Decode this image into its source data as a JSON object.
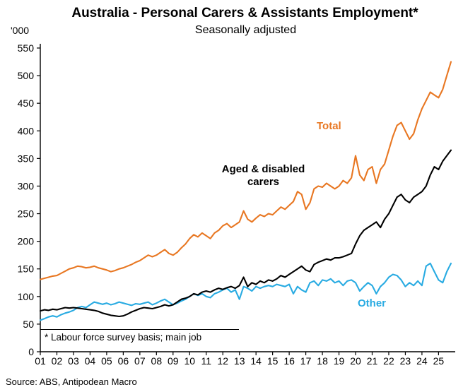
{
  "chart": {
    "title": "Australia - Personal Carers & Assistants Employment*",
    "subtitle": "Seasonally adjusted",
    "y_unit_label": "'000",
    "footnote": "* Labour force survey basis; main job",
    "source": "Source: ABS, Antipodean Macro"
  },
  "chart_data": {
    "type": "line",
    "title": "Australia - Personal Carers & Assistants Employment*",
    "subtitle": "Seasonally adjusted",
    "ylabel": "'000",
    "ylim": [
      0,
      550
    ],
    "ytick_step": 50,
    "grid": false,
    "legend_position": "inline-labels",
    "x_start_year": 2001,
    "x_step_years": 0.25,
    "xtick_labels": [
      "01",
      "02",
      "03",
      "04",
      "05",
      "06",
      "07",
      "08",
      "09",
      "10",
      "11",
      "12",
      "13",
      "14",
      "15",
      "16",
      "17",
      "18",
      "19",
      "20",
      "21",
      "22",
      "23",
      "24",
      "25"
    ],
    "series": [
      {
        "name": "Total",
        "color": "#E87722",
        "values": [
          131,
          133,
          135,
          137,
          138,
          142,
          146,
          150,
          152,
          155,
          154,
          152,
          153,
          155,
          152,
          150,
          148,
          145,
          147,
          150,
          152,
          155,
          158,
          162,
          165,
          170,
          175,
          172,
          175,
          180,
          185,
          178,
          175,
          180,
          188,
          195,
          205,
          212,
          208,
          215,
          210,
          205,
          215,
          220,
          228,
          232,
          225,
          230,
          235,
          255,
          240,
          235,
          242,
          248,
          245,
          250,
          248,
          255,
          262,
          258,
          265,
          272,
          290,
          285,
          258,
          270,
          295,
          300,
          298,
          305,
          300,
          295,
          300,
          310,
          305,
          315,
          355,
          320,
          310,
          330,
          335,
          305,
          330,
          340,
          365,
          390,
          410,
          415,
          400,
          385,
          395,
          420,
          440,
          455,
          470,
          465,
          460,
          475,
          500,
          525
        ]
      },
      {
        "name": "Aged & disabled carers",
        "color": "#000000",
        "values": [
          74,
          76,
          75,
          77,
          76,
          78,
          80,
          79,
          80,
          79,
          78,
          77,
          76,
          75,
          73,
          70,
          68,
          66,
          65,
          64,
          65,
          68,
          72,
          75,
          78,
          80,
          79,
          78,
          80,
          82,
          85,
          83,
          85,
          90,
          95,
          97,
          100,
          105,
          103,
          108,
          110,
          108,
          112,
          115,
          113,
          116,
          118,
          115,
          120,
          135,
          118,
          125,
          122,
          128,
          125,
          130,
          128,
          132,
          138,
          135,
          140,
          145,
          150,
          155,
          148,
          145,
          158,
          162,
          165,
          168,
          166,
          170,
          170,
          172,
          175,
          178,
          195,
          210,
          220,
          225,
          230,
          235,
          225,
          240,
          250,
          265,
          280,
          285,
          275,
          270,
          280,
          285,
          290,
          300,
          320,
          335,
          330,
          345,
          355,
          365
        ]
      },
      {
        "name": "Other",
        "color": "#29ABE2",
        "values": [
          57,
          60,
          63,
          65,
          63,
          67,
          70,
          72,
          75,
          80,
          82,
          80,
          85,
          90,
          88,
          86,
          88,
          85,
          87,
          90,
          88,
          86,
          84,
          87,
          86,
          88,
          90,
          85,
          88,
          92,
          95,
          90,
          85,
          88,
          92,
          95,
          100,
          105,
          102,
          105,
          100,
          98,
          105,
          108,
          112,
          115,
          108,
          112,
          95,
          118,
          115,
          110,
          118,
          115,
          118,
          120,
          118,
          122,
          120,
          118,
          122,
          105,
          118,
          112,
          108,
          125,
          128,
          120,
          130,
          128,
          132,
          125,
          128,
          120,
          128,
          130,
          125,
          110,
          118,
          125,
          120,
          105,
          118,
          125,
          135,
          140,
          138,
          130,
          118,
          125,
          120,
          128,
          120,
          155,
          160,
          145,
          130,
          125,
          145,
          160
        ]
      }
    ],
    "annotations": [
      {
        "text": "Total",
        "series": "Total"
      },
      {
        "text": "Aged & disabled carers",
        "series": "Aged & disabled carers"
      },
      {
        "text": "Other",
        "series": "Other"
      },
      {
        "text": "* Labour force survey basis; main job"
      }
    ]
  }
}
